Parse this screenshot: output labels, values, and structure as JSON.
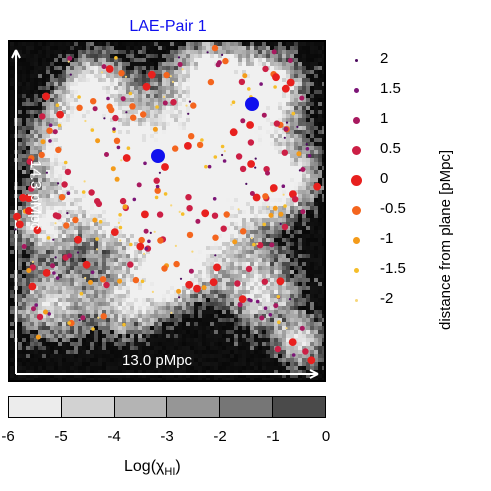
{
  "chart_data": {
    "type": "scatter",
    "title": "LAE-Pair 1",
    "background": "neutral hydrogen fraction map (grayscale)",
    "x_extent_label": "13.0 pMpc",
    "y_extent_label": "14.3 pMpc",
    "lae_pair_color": "#1010ee",
    "colorbar": {
      "label_main": "Log(χ",
      "label_sub": "HI",
      "label_end": ")",
      "ticks": [
        "-6",
        "-5",
        "-4",
        "-3",
        "-2",
        "-1",
        "0"
      ],
      "range": [
        -6,
        0
      ],
      "colors": [
        "#ececec",
        "#d2d2d2",
        "#b4b4b4",
        "#969696",
        "#767676",
        "#4a4a4a",
        "#121212"
      ]
    },
    "legend": {
      "title": "distance from plane [pMpc]",
      "entries": [
        {
          "label": "2",
          "color": "#4b0a5e",
          "size": 1
        },
        {
          "label": "1.5",
          "color": "#7c1577",
          "size": 2
        },
        {
          "label": "1",
          "color": "#a8195f",
          "size": 3
        },
        {
          "label": "0.5",
          "color": "#cc1f45",
          "size": 4
        },
        {
          "label": "0",
          "color": "#e8201e",
          "size": 5
        },
        {
          "label": "-0.5",
          "color": "#f4651e",
          "size": 4
        },
        {
          "label": "-1",
          "color": "#f49b1a",
          "size": 3
        },
        {
          "label": "-1.5",
          "color": "#f5be2a",
          "size": 2
        },
        {
          "label": "-2",
          "color": "#f7d77a",
          "size": 1
        }
      ]
    }
  }
}
